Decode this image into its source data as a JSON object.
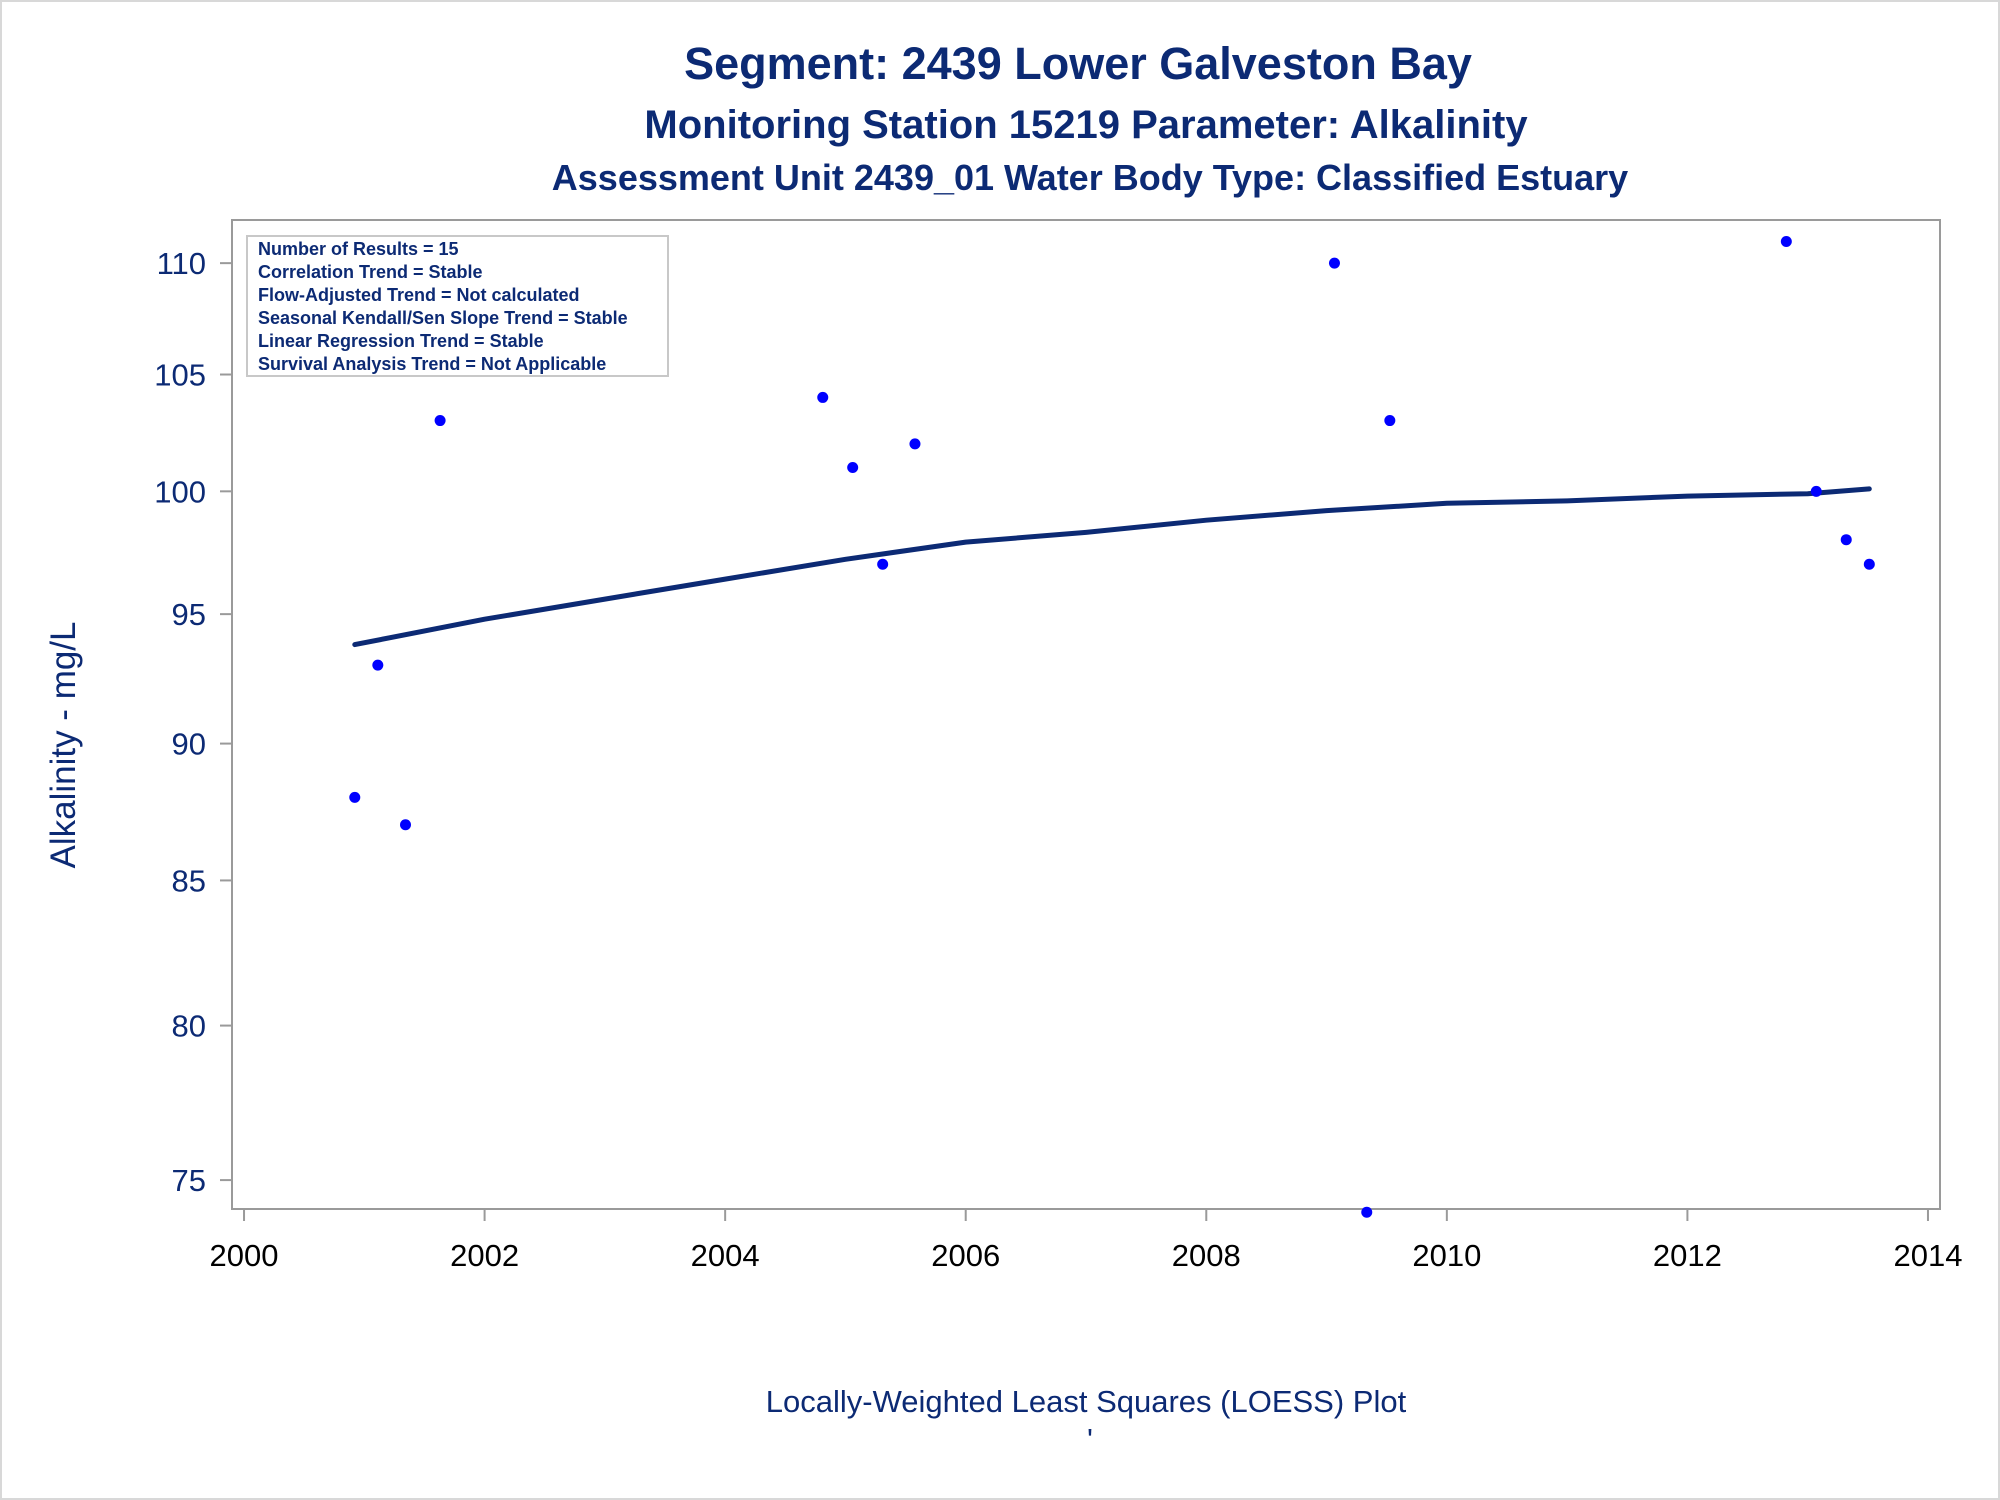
{
  "titles": {
    "line1": "Segment: 2439  Lower Galveston Bay",
    "line2": "Monitoring Station 15219 Parameter: Alkalinity",
    "line3": "Assessment Unit 2439_01   Water Body Type: Classified Estuary"
  },
  "stats_box": [
    "Number of Results = 15",
    "Correlation Trend = Stable",
    "Flow-Adjusted Trend = Not calculated",
    "Seasonal Kendall/Sen Slope Trend = Stable",
    "Linear Regression Trend = Stable",
    "Survival Analysis Trend = Not Applicable"
  ],
  "footnote": "Locally-Weighted Least Squares (LOESS) Plot",
  "footnote_mark": "'",
  "colors": {
    "text": "#0c2a74",
    "points": "#0000ff",
    "loess_line": "#0c2a74",
    "frame": "#9a9a9a",
    "legend_border": "#c8c8c8"
  },
  "chart_data": {
    "type": "scatter",
    "xlabel": "",
    "ylabel": "Alkalinity - mg/L",
    "y_scale": "log",
    "xlim": [
      1999.9,
      2014.1
    ],
    "ylim": [
      74.1,
      112.0
    ],
    "x_ticks": [
      2000,
      2002,
      2004,
      2006,
      2008,
      2010,
      2012,
      2014
    ],
    "y_ticks": [
      75,
      80,
      85,
      90,
      95,
      100,
      105,
      110
    ],
    "grid": false,
    "series": [
      {
        "kind": "points",
        "points": [
          {
            "x": "2000-12-03",
            "y": 88
          },
          {
            "x": "2001-02-11",
            "y": 93
          },
          {
            "x": "2001-05-06",
            "y": 87
          },
          {
            "x": "2001-08-19",
            "y": 103
          },
          {
            "x": "2004-10-24",
            "y": 104
          },
          {
            "x": "2005-01-23",
            "y": 101
          },
          {
            "x": "2005-04-24",
            "y": 97
          },
          {
            "x": "2005-07-31",
            "y": 102
          },
          {
            "x": "2009-01-25",
            "y": 110
          },
          {
            "x": "2009-05-03",
            "y": 74
          },
          {
            "x": "2009-07-12",
            "y": 103
          },
          {
            "x": "2012-10-28",
            "y": 111
          },
          {
            "x": "2013-01-27",
            "y": 100
          },
          {
            "x": "2013-04-28",
            "y": 98
          },
          {
            "x": "2013-07-07",
            "y": 97
          }
        ]
      },
      {
        "kind": "loess",
        "points": [
          {
            "x": "2000-12-03",
            "y": 93.8
          },
          {
            "x": "2002-01-01",
            "y": 94.8
          },
          {
            "x": "2003-01-01",
            "y": 95.6
          },
          {
            "x": "2004-01-01",
            "y": 96.4
          },
          {
            "x": "2005-01-01",
            "y": 97.2
          },
          {
            "x": "2006-01-01",
            "y": 97.9
          },
          {
            "x": "2007-01-01",
            "y": 98.3
          },
          {
            "x": "2008-01-01",
            "y": 98.8
          },
          {
            "x": "2009-01-01",
            "y": 99.2
          },
          {
            "x": "2010-01-01",
            "y": 99.5
          },
          {
            "x": "2011-01-01",
            "y": 99.6
          },
          {
            "x": "2012-01-01",
            "y": 99.8
          },
          {
            "x": "2013-01-01",
            "y": 99.9
          },
          {
            "x": "2013-07-07",
            "y": 100.1
          }
        ]
      }
    ]
  }
}
